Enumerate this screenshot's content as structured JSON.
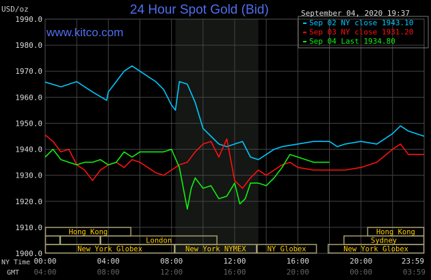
{
  "chart_data": {
    "type": "line",
    "title": "24 Hour Spot Gold (Bid)",
    "watermark": "www.kitco.com",
    "ylabel": "USD/oz",
    "timestamp": "September 04, 2020 19:37",
    "ylim": [
      1900,
      1990
    ],
    "yticks": [
      "1990.0",
      "1980.0",
      "1970.0",
      "1960.0",
      "1950.0",
      "1940.0",
      "1930.0",
      "1920.0",
      "1910.0",
      "1900.0"
    ],
    "xlim_hours": [
      0,
      24
    ],
    "x_axis_labels": {
      "ny_label": "NY Time",
      "gmt_label": "GMT"
    },
    "xticks_ny": [
      "00:00",
      "04:00",
      "08:00",
      "12:00",
      "16:00",
      "20:00",
      "23:59"
    ],
    "xticks_gmt": [
      "04:00",
      "08:00",
      "12:00",
      "16:00",
      "20:00",
      "00:00",
      "03:59"
    ],
    "grid": true,
    "shaded_session_hours": [
      8.25,
      13.5
    ],
    "legend_position": "top-right",
    "series": [
      {
        "name": "Sep 02 NY close 1943.10",
        "color": "#00c8ff",
        "x": [
          0,
          1,
          2,
          3,
          3.9,
          4,
          4.5,
          5,
          5.5,
          6,
          7,
          7.5,
          8,
          8.25,
          8.5,
          9,
          9.5,
          10,
          10.5,
          11,
          11.5,
          12,
          12.5,
          13,
          13.5,
          14,
          14.5,
          15,
          16,
          17,
          18,
          18.5,
          19,
          20,
          21,
          22,
          22.5,
          23,
          24
        ],
        "y": [
          1965.8,
          1964,
          1966,
          1962,
          1958.8,
          1962,
          1966,
          1970,
          1972,
          1970,
          1966,
          1963,
          1957,
          1955,
          1966,
          1965,
          1958,
          1948,
          1945,
          1942,
          1941,
          1942,
          1943,
          1937,
          1936,
          1938,
          1940,
          1941,
          1942,
          1943,
          1943,
          1941,
          1942,
          1943,
          1942,
          1946,
          1949,
          1947,
          1945
        ]
      },
      {
        "name": "Sep 03 NY close 1931.20",
        "color": "#ff1010",
        "x": [
          0,
          0.5,
          1,
          1.5,
          2,
          2.5,
          3,
          3.5,
          4,
          4.5,
          5,
          5.5,
          6,
          6.5,
          7,
          7.5,
          8,
          8.5,
          9,
          9.5,
          10,
          10.5,
          11,
          11.5,
          12,
          12.5,
          13,
          13.5,
          14,
          14.5,
          15,
          15.5,
          16,
          17,
          18,
          19,
          20,
          21,
          22,
          22.5,
          23,
          24
        ],
        "y": [
          1945.5,
          1943,
          1939,
          1940,
          1934,
          1932,
          1928,
          1932,
          1934,
          1935,
          1933,
          1936,
          1935,
          1933,
          1931,
          1930,
          1932,
          1934,
          1935,
          1939,
          1942,
          1943,
          1937,
          1944,
          1928,
          1925,
          1929,
          1932,
          1930,
          1932,
          1934,
          1935,
          1933,
          1932,
          1932,
          1932,
          1933,
          1935,
          1940,
          1942,
          1938,
          1938
        ]
      },
      {
        "name": "Sep 04 Last 1934.80",
        "color": "#10f010",
        "x": [
          0,
          0.5,
          1,
          1.5,
          2,
          2.5,
          3,
          3.5,
          4,
          4.5,
          5,
          5.5,
          6,
          6.5,
          7,
          7.5,
          8,
          8.5,
          8.75,
          9,
          9.25,
          9.5,
          10,
          10.5,
          11,
          11.5,
          12,
          12.33,
          12.67,
          13,
          13.5,
          14,
          14.5,
          15,
          15.5,
          16,
          16.5,
          17,
          17.5,
          18
        ],
        "y": [
          1937,
          1940,
          1936,
          1935,
          1934,
          1935,
          1935,
          1936,
          1934,
          1935,
          1939,
          1937,
          1939,
          1939,
          1939,
          1939,
          1940,
          1933,
          1925,
          1917,
          1925,
          1929,
          1925,
          1926,
          1921,
          1922,
          1927,
          1919,
          1921,
          1927,
          1927,
          1926,
          1929,
          1933,
          1938,
          1937,
          1936,
          1935,
          1935,
          1935
        ]
      }
    ],
    "sessions": [
      {
        "label": "Hong Kong",
        "row": 0,
        "start": 0,
        "end": 5.45
      },
      {
        "label": "Hong Kong",
        "row": 0,
        "start": 20.4,
        "end": 24
      },
      {
        "label": "",
        "row": 1,
        "start": 0,
        "end": 0.95
      },
      {
        "label": "",
        "row": 1,
        "start": 0.95,
        "end": 3.5
      },
      {
        "label": "London",
        "row": 1,
        "start": 3.5,
        "end": 10.9
      },
      {
        "label": "Sydney",
        "row": 1,
        "start": 18.9,
        "end": 24
      },
      {
        "label": "New York Globex",
        "row": 2,
        "start": 0,
        "end": 8.2
      },
      {
        "label": "New York NYMEX",
        "row": 2,
        "start": 8.2,
        "end": 13.4
      },
      {
        "label": "NY Globex",
        "row": 2,
        "start": 13.4,
        "end": 17.2
      },
      {
        "label": "New York Globex",
        "row": 2,
        "start": 17.9,
        "end": 24
      }
    ]
  }
}
